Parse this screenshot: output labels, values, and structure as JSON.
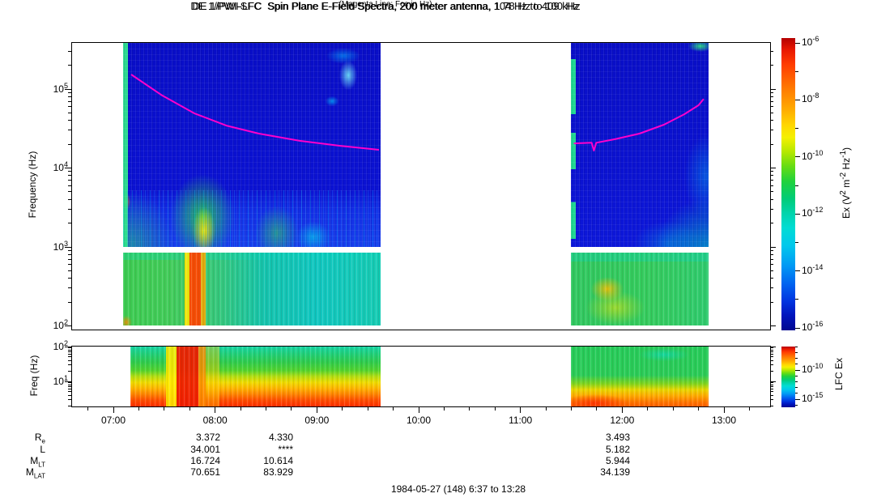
{
  "header": {
    "title": "DE 1/PWI-SFC  Spin Plane E-Field Spectra, 200 meter antenna, 104 Hz to 409 kHz",
    "subtitle": "(Magenta Line: Fce in Hz)"
  },
  "sfc": {
    "y_label": "Frequency (Hz)",
    "y_ticks": [
      {
        "base": "10",
        "exp": "5"
      },
      {
        "base": "10",
        "exp": "4"
      },
      {
        "base": "10",
        "exp": "3"
      },
      {
        "base": "10",
        "exp": "2"
      }
    ],
    "cbar_ticks": [
      {
        "base": "10",
        "exp": "-6"
      },
      {
        "base": "10",
        "exp": "-8"
      },
      {
        "base": "10",
        "exp": "-10"
      },
      {
        "base": "10",
        "exp": "-12"
      },
      {
        "base": "10",
        "exp": "-14"
      },
      {
        "base": "10",
        "exp": "-16"
      }
    ],
    "cbar_label_parts": {
      "p0": "Ex (V",
      "s0": "2",
      "p1": " m",
      "s1": "-2",
      "p2": " Hz",
      "s2": "-1",
      "p3": ")"
    }
  },
  "lfc": {
    "title": "DE 1/PWI-LFC  Spin Plane E-Field Spectra, 200 meter antenna, 1.78 Hz to 100 Hz",
    "y_label": "Freq (Hz)",
    "y_ticks": [
      {
        "base": "10",
        "exp": "2"
      },
      {
        "base": "10",
        "exp": "1"
      }
    ],
    "cbar_ticks": [
      {
        "base": "10",
        "exp": "-10"
      },
      {
        "base": "10",
        "exp": "-15"
      }
    ],
    "cbar_label": "LFC Ex"
  },
  "x_axis": {
    "labels": [
      "07:00",
      "08:00",
      "09:00",
      "10:00",
      "11:00",
      "12:00",
      "13:00"
    ]
  },
  "ephemeris": {
    "rows": [
      {
        "label": {
          "base": "R",
          "sub": "e"
        },
        "values": [
          "3.372",
          "4.330",
          "3.493"
        ]
      },
      {
        "label": {
          "base": "L",
          "sub": ""
        },
        "values": [
          "34.001",
          "****",
          "5.182"
        ]
      },
      {
        "label": {
          "base": "M",
          "sub": "LT"
        },
        "values": [
          "16.724",
          "10.614",
          "5.944"
        ]
      },
      {
        "label": {
          "base": "M",
          "sub": "LAT"
        },
        "values": [
          "70.651",
          "83.929",
          "34.139"
        ]
      }
    ]
  },
  "caption": {
    "text": "1984-05-27 (148) 6:37 to 13:28"
  },
  "chart_data": [
    {
      "type": "heatmap",
      "panel": "SFC",
      "title": "DE 1/PWI-SFC  Spin Plane E-Field Spectra, 200 meter antenna, 104 Hz to 409 kHz",
      "xlabel": "UT",
      "x_range": [
        "06:37",
        "13:28"
      ],
      "x_tick_labels": [
        "07:00",
        "08:00",
        "09:00",
        "10:00",
        "11:00",
        "12:00",
        "13:00"
      ],
      "ylabel": "Frequency (Hz)",
      "y_scale": "log",
      "y_range_hz": [
        104,
        409000
      ],
      "receiver_band_gap_hz": [
        840,
        1000
      ],
      "colorbar": {
        "label": "Ex (V^2 m^-2 Hz^-1)",
        "scale": "log",
        "range": [
          1e-16,
          1e-06
        ],
        "colormap": "rainbow (red=high, blue=low)"
      },
      "data_coverage_ut": [
        [
          "07:06",
          "09:38"
        ],
        [
          "11:31",
          "12:51"
        ]
      ],
      "legend": "Magenta Line: Fce in Hz"
    },
    {
      "type": "heatmap",
      "panel": "LFC",
      "title": "DE 1/PWI-LFC  Spin Plane E-Field Spectra, 200 meter antenna, 1.78 Hz to 100 Hz",
      "xlabel": "UT",
      "x_range": [
        "06:37",
        "13:28"
      ],
      "ylabel": "Freq (Hz)",
      "y_scale": "log",
      "y_range_hz": [
        1.78,
        100
      ],
      "colorbar": {
        "label": "LFC Ex",
        "scale": "log",
        "tick_values": [
          1e-10,
          1e-15
        ],
        "colormap": "rainbow (red=high, blue=low)"
      },
      "data_coverage_ut": [
        [
          "07:10",
          "09:38"
        ],
        [
          "11:32",
          "12:51"
        ]
      ]
    },
    {
      "type": "line",
      "panel": "SFC overlay",
      "name": "Fce (electron cyclotron frequency)",
      "color": "#ff00cc",
      "units": [
        "decimal_hour_ut",
        "Hz"
      ],
      "segments": [
        [
          [
            7.175,
            153000
          ],
          [
            7.48,
            83000
          ],
          [
            7.8,
            49000
          ],
          [
            8.11,
            34500
          ],
          [
            8.43,
            27300
          ],
          [
            8.83,
            22100
          ],
          [
            9.23,
            19100
          ],
          [
            9.61,
            17000
          ]
        ],
        [
          [
            11.525,
            20500
          ],
          [
            11.7,
            20900
          ],
          [
            11.722,
            16600
          ],
          [
            11.745,
            20900
          ],
          [
            11.93,
            23200
          ],
          [
            12.17,
            27300
          ],
          [
            12.41,
            35400
          ],
          [
            12.61,
            48000
          ],
          [
            12.75,
            62300
          ],
          [
            12.8,
            75000
          ]
        ]
      ]
    },
    {
      "type": "table",
      "panel": "ephemeris",
      "row_labels": [
        "Re",
        "L",
        "MLT",
        "MLAT"
      ],
      "column_times_ut": [
        "08:00",
        "09:00",
        "12:00"
      ],
      "values": [
        [
          "3.372",
          "4.330",
          "3.493"
        ],
        [
          "34.001",
          "****",
          "5.182"
        ],
        [
          "16.724",
          "10.614",
          "5.944"
        ],
        [
          "70.651",
          "83.929",
          "34.139"
        ]
      ],
      "caption": "1984-05-27 (148) 6:37 to 13:28"
    }
  ]
}
